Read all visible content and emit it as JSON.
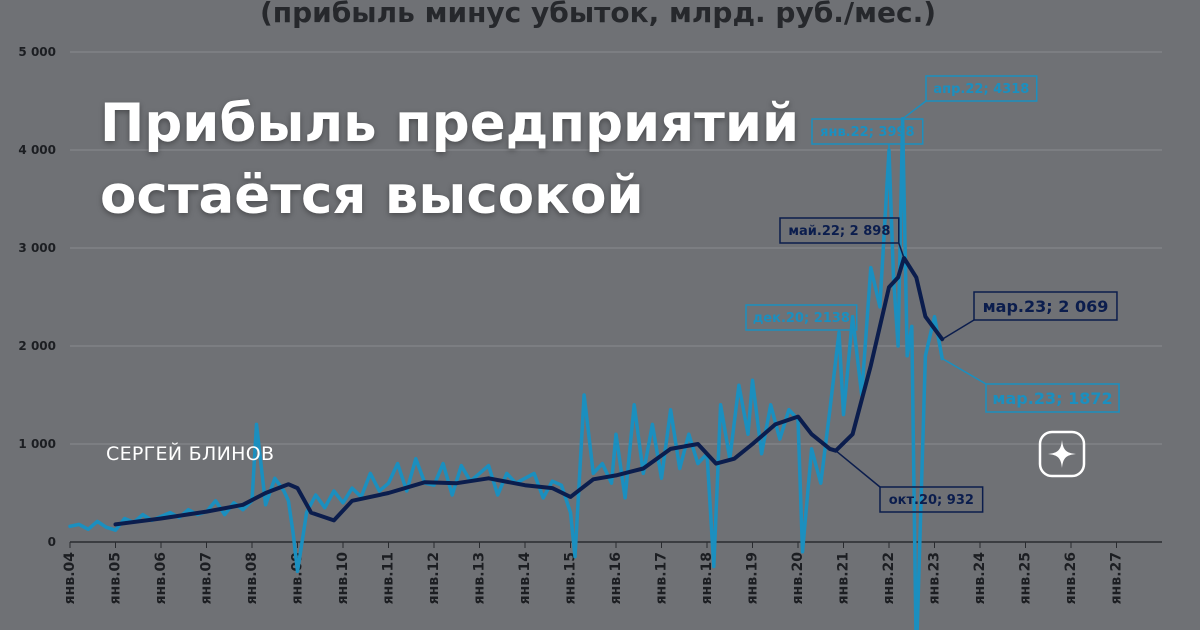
{
  "headline": {
    "line1": "Прибыль предприятий",
    "line2": "остаётся высокой"
  },
  "author": "СЕРГЕЙ БЛИНОВ",
  "logo_icon": "sparkle-star-icon",
  "chart_data": {
    "type": "line",
    "title": "(прибыль минус убыток, млрд. руб./мес.)",
    "xlabel": "",
    "ylabel": "",
    "ylim": [
      0,
      5000
    ],
    "yticks": [
      0,
      1000,
      2000,
      3000,
      4000,
      5000
    ],
    "ytick_labels": [
      "0",
      "1 000",
      "2 000",
      "3 000",
      "4 000",
      "5 000"
    ],
    "xlim": [
      2004,
      2028
    ],
    "xtick_labels": [
      "янв.04",
      "янв.05",
      "янв.06",
      "янв.07",
      "янв.08",
      "янв.09",
      "янв.10",
      "янв.11",
      "янв.12",
      "янв.13",
      "янв.14",
      "янв.15",
      "янв.16",
      "янв.17",
      "янв.18",
      "янв.19",
      "янв.20",
      "янв.21",
      "янв.22",
      "янв.23",
      "янв.24",
      "янв.25",
      "янв.26",
      "янв.27"
    ],
    "grid": true,
    "colors": {
      "monthly": "#1b8fbf",
      "smoothed": "#0b1d4d",
      "background": "#6f7175",
      "grid": "#8a8c90"
    },
    "series": [
      {
        "points": [
          [
            2004.0,
            160
          ],
          [
            2004.2,
            180
          ],
          [
            2004.4,
            130
          ],
          [
            2004.6,
            210
          ],
          [
            2004.8,
            150
          ],
          [
            2005.0,
            120
          ],
          [
            2005.2,
            240
          ],
          [
            2005.4,
            200
          ],
          [
            2005.6,
            280
          ],
          [
            2005.8,
            220
          ],
          [
            2006.0,
            260
          ],
          [
            2006.2,
            300
          ],
          [
            2006.4,
            250
          ],
          [
            2006.6,
            330
          ],
          [
            2006.8,
            280
          ],
          [
            2007.0,
            310
          ],
          [
            2007.2,
            420
          ],
          [
            2007.4,
            280
          ],
          [
            2007.6,
            400
          ],
          [
            2007.8,
            330
          ],
          [
            2008.0,
            420
          ],
          [
            2008.1,
            1200
          ],
          [
            2008.3,
            380
          ],
          [
            2008.5,
            650
          ],
          [
            2008.7,
            520
          ],
          [
            2008.8,
            420
          ],
          [
            2008.9,
            100
          ],
          [
            2009.0,
            -300
          ],
          [
            2009.2,
            300
          ],
          [
            2009.4,
            480
          ],
          [
            2009.6,
            350
          ],
          [
            2009.8,
            520
          ],
          [
            2010.0,
            400
          ],
          [
            2010.2,
            550
          ],
          [
            2010.4,
            460
          ],
          [
            2010.6,
            700
          ],
          [
            2010.8,
            520
          ],
          [
            2011.0,
            600
          ],
          [
            2011.2,
            800
          ],
          [
            2011.4,
            520
          ],
          [
            2011.6,
            850
          ],
          [
            2011.8,
            600
          ],
          [
            2012.0,
            580
          ],
          [
            2012.2,
            800
          ],
          [
            2012.4,
            480
          ],
          [
            2012.6,
            780
          ],
          [
            2012.8,
            620
          ],
          [
            2013.0,
            700
          ],
          [
            2013.2,
            780
          ],
          [
            2013.4,
            480
          ],
          [
            2013.6,
            700
          ],
          [
            2013.8,
            600
          ],
          [
            2014.0,
            650
          ],
          [
            2014.2,
            700
          ],
          [
            2014.4,
            450
          ],
          [
            2014.6,
            620
          ],
          [
            2014.8,
            580
          ],
          [
            2015.0,
            300
          ],
          [
            2015.1,
            -150
          ],
          [
            2015.3,
            1500
          ],
          [
            2015.5,
            700
          ],
          [
            2015.7,
            800
          ],
          [
            2015.9,
            600
          ],
          [
            2016.0,
            1100
          ],
          [
            2016.2,
            450
          ],
          [
            2016.4,
            1400
          ],
          [
            2016.6,
            700
          ],
          [
            2016.8,
            1200
          ],
          [
            2017.0,
            650
          ],
          [
            2017.2,
            1350
          ],
          [
            2017.4,
            750
          ],
          [
            2017.6,
            1100
          ],
          [
            2017.8,
            800
          ],
          [
            2018.0,
            900
          ],
          [
            2018.15,
            -250
          ],
          [
            2018.3,
            1400
          ],
          [
            2018.5,
            850
          ],
          [
            2018.7,
            1600
          ],
          [
            2018.9,
            1100
          ],
          [
            2019.0,
            1650
          ],
          [
            2019.2,
            900
          ],
          [
            2019.4,
            1400
          ],
          [
            2019.6,
            1050
          ],
          [
            2019.8,
            1350
          ],
          [
            2020.0,
            1250
          ],
          [
            2020.1,
            -100
          ],
          [
            2020.3,
            950
          ],
          [
            2020.5,
            600
          ],
          [
            2020.7,
            1350
          ],
          [
            2020.9,
            2138
          ],
          [
            2021.0,
            1300
          ],
          [
            2021.2,
            2300
          ],
          [
            2021.4,
            1500
          ],
          [
            2021.6,
            2800
          ],
          [
            2021.8,
            2400
          ],
          [
            2022.0,
            3998
          ],
          [
            2022.1,
            2700
          ],
          [
            2022.2,
            2000
          ],
          [
            2022.3,
            4318
          ],
          [
            2022.4,
            1900
          ],
          [
            2022.5,
            2200
          ],
          [
            2022.6,
            -1200
          ],
          [
            2022.8,
            1900
          ],
          [
            2023.0,
            2300
          ],
          [
            2023.17,
            1872
          ]
        ]
      },
      {
        "points": [
          [
            2005.0,
            180
          ],
          [
            2006.0,
            240
          ],
          [
            2007.0,
            310
          ],
          [
            2007.8,
            380
          ],
          [
            2008.3,
            500
          ],
          [
            2008.8,
            590
          ],
          [
            2009.0,
            550
          ],
          [
            2009.3,
            300
          ],
          [
            2009.8,
            220
          ],
          [
            2010.2,
            420
          ],
          [
            2011.0,
            500
          ],
          [
            2011.8,
            610
          ],
          [
            2012.5,
            600
          ],
          [
            2013.2,
            650
          ],
          [
            2014.0,
            580
          ],
          [
            2014.6,
            550
          ],
          [
            2015.0,
            460
          ],
          [
            2015.5,
            640
          ],
          [
            2016.0,
            680
          ],
          [
            2016.6,
            750
          ],
          [
            2017.2,
            950
          ],
          [
            2017.8,
            1000
          ],
          [
            2018.2,
            800
          ],
          [
            2018.6,
            850
          ],
          [
            2019.0,
            1000
          ],
          [
            2019.5,
            1200
          ],
          [
            2020.0,
            1280
          ],
          [
            2020.3,
            1100
          ],
          [
            2020.7,
            950
          ],
          [
            2020.83,
            932
          ],
          [
            2021.2,
            1100
          ],
          [
            2021.6,
            1800
          ],
          [
            2022.0,
            2600
          ],
          [
            2022.2,
            2700
          ],
          [
            2022.33,
            2898
          ],
          [
            2022.6,
            2700
          ],
          [
            2022.8,
            2300
          ],
          [
            2023.17,
            2069
          ]
        ]
      }
    ],
    "annotations": [
      {
        "text": "дек.20; 2138",
        "x": 2020.9,
        "y": 2138,
        "series": 0
      },
      {
        "text": "янв.22; 3998",
        "x": 2022.0,
        "y": 3998,
        "series": 0
      },
      {
        "text": "апр.22; 4318",
        "x": 2022.3,
        "y": 4318,
        "series": 0
      },
      {
        "text": "май.22; 2 898",
        "x": 2022.33,
        "y": 2898,
        "series": 1
      },
      {
        "text": "мар.23; 2 069",
        "x": 2023.17,
        "y": 2069,
        "series": 1
      },
      {
        "text": "мар.23; 1872",
        "x": 2023.17,
        "y": 1872,
        "series": 0
      },
      {
        "text": "окт.20; 932",
        "x": 2020.83,
        "y": 932,
        "series": 1
      }
    ]
  }
}
